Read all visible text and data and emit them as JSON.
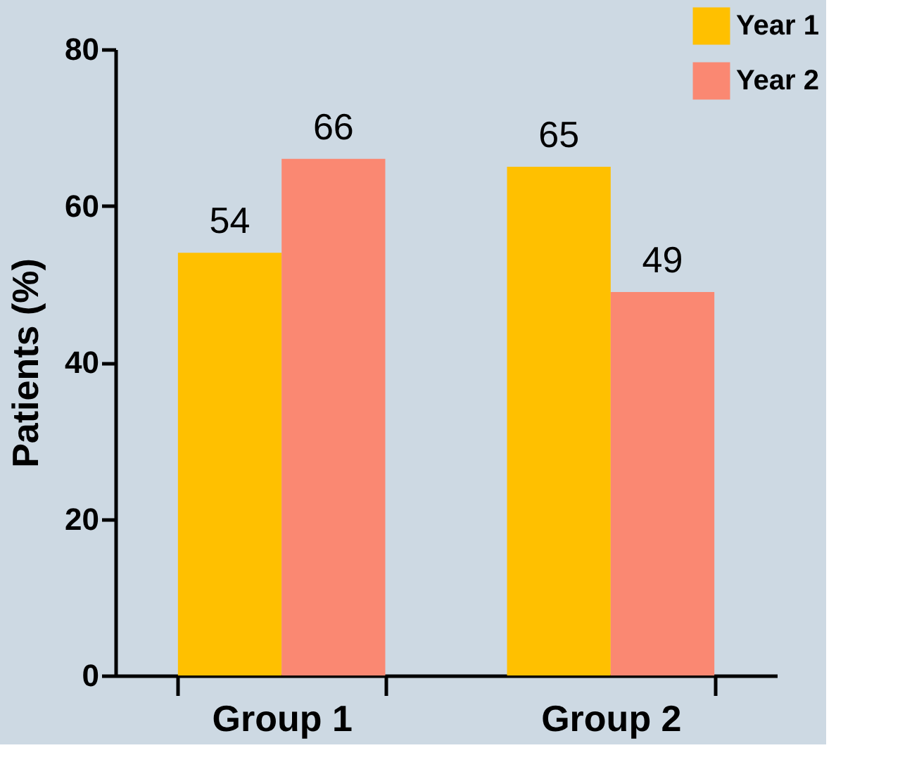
{
  "chart_data": {
    "type": "bar",
    "ylabel": "Patients (%)",
    "categories": [
      "Group 1",
      "Group 2"
    ],
    "series": [
      {
        "name": "Year 1",
        "color": "#ffc000",
        "values": [
          54,
          65
        ]
      },
      {
        "name": "Year 2",
        "color": "#fa8872",
        "values": [
          66,
          49
        ]
      }
    ],
    "ylim": [
      0,
      80
    ],
    "yticks": [
      0,
      20,
      40,
      60,
      80
    ],
    "grid": false,
    "legend": "top right",
    "data_labels": true
  }
}
